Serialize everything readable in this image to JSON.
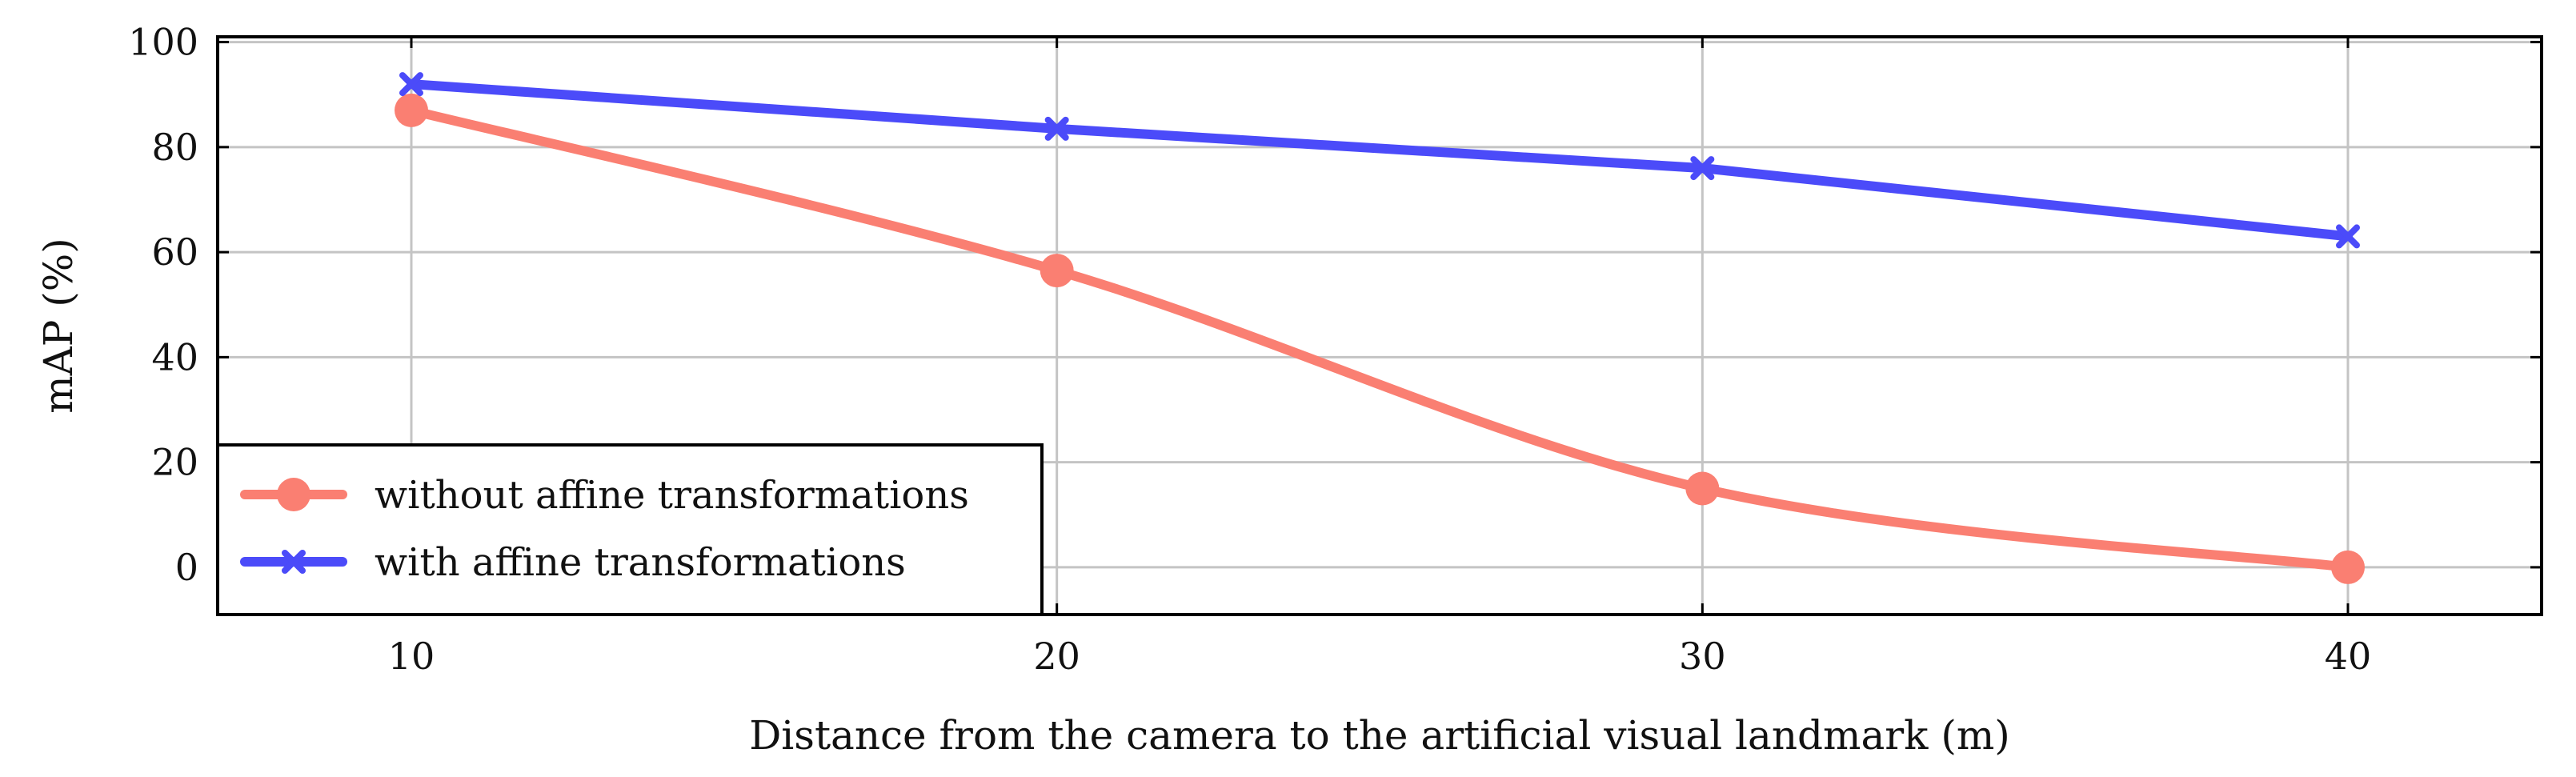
{
  "chart_data": {
    "type": "line",
    "title": "",
    "xlabel": "Distance from the camera to the artificial visual landmark (m)",
    "ylabel": "mAP (%)",
    "x": [
      10,
      20,
      30,
      40
    ],
    "xticks": [
      "10",
      "20",
      "30",
      "40"
    ],
    "yticks": [
      "0",
      "20",
      "40",
      "60",
      "80",
      "100"
    ],
    "xlim": [
      7,
      43
    ],
    "ylim": [
      -9,
      101
    ],
    "grid": true,
    "legend_position": "bottom-left",
    "series": [
      {
        "name": "without affine transformations",
        "values": [
          87,
          56.5,
          15,
          0
        ],
        "color": "#fa7f72",
        "marker": "circle",
        "smooth": true
      },
      {
        "name": "with affine transformations",
        "values": [
          92,
          83.5,
          76,
          63
        ],
        "color": "#4b4bf9",
        "marker": "x",
        "smooth": false
      }
    ]
  }
}
